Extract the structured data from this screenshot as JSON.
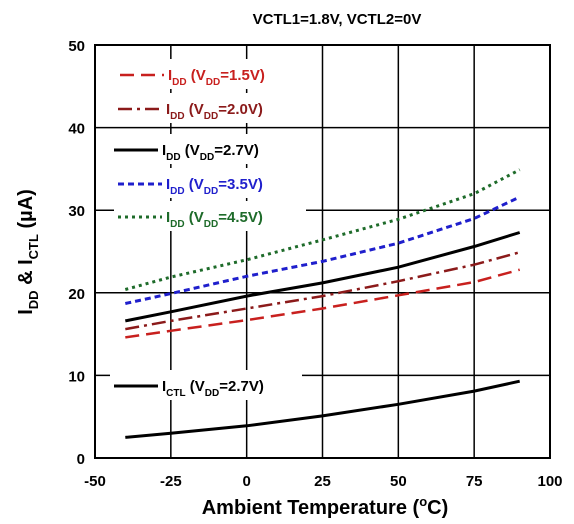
{
  "chart_data": {
    "type": "line",
    "subtitle": "VCTL1=1.8V, VCTL2=0V",
    "xlabel": "Ambient Temperature (",
    "xlabel_sup": "o",
    "xlabel_tail": "C)",
    "ylabel_parts": [
      "I",
      "DD",
      " & I",
      "CTL",
      " (µA)"
    ],
    "xlim": [
      -50,
      100
    ],
    "ylim": [
      0,
      50
    ],
    "x_ticks": [
      -50,
      -25,
      0,
      25,
      50,
      75,
      100
    ],
    "y_ticks": [
      0,
      10,
      20,
      30,
      40,
      50
    ],
    "grid": true,
    "legend_placement": "top-left",
    "series": [
      {
        "label": [
          "I",
          "DD",
          " (V",
          "DD",
          "=1.5V)"
        ],
        "color": "#c8201e",
        "dash": "14,7",
        "width": 2.5,
        "x": [
          -40,
          -25,
          0,
          25,
          50,
          75,
          90
        ],
        "y": [
          14.6,
          15.4,
          16.7,
          18.1,
          19.7,
          21.3,
          22.8
        ]
      },
      {
        "label": [
          "I",
          "DD",
          " (V",
          "DD",
          "=2.0V)"
        ],
        "color": "#8b1a1a",
        "dash": "14,5,3,5",
        "width": 2.5,
        "x": [
          -40,
          -25,
          0,
          25,
          50,
          75,
          90
        ],
        "y": [
          15.6,
          16.6,
          18.1,
          19.6,
          21.4,
          23.4,
          24.9
        ]
      },
      {
        "label": [
          "I",
          "DD",
          " (V",
          "DD",
          "=2.7V)"
        ],
        "color": "#000000",
        "dash": "",
        "width": 3,
        "x": [
          -40,
          -25,
          0,
          25,
          50,
          75,
          90
        ],
        "y": [
          16.6,
          17.7,
          19.6,
          21.2,
          23.1,
          25.6,
          27.3
        ]
      },
      {
        "label": [
          "I",
          "DD",
          " (V",
          "DD",
          "=3.5V)"
        ],
        "color": "#1f1fcc",
        "dash": "6,4",
        "width": 3,
        "x": [
          -40,
          -25,
          0,
          25,
          50,
          75,
          90
        ],
        "y": [
          18.7,
          19.9,
          22.0,
          23.8,
          26.0,
          29.0,
          31.6
        ]
      },
      {
        "label": [
          "I",
          "DD",
          " (V",
          "DD",
          "=4.5V)"
        ],
        "color": "#1e6b2a",
        "dash": "3,4",
        "width": 3,
        "x": [
          -40,
          -25,
          0,
          25,
          50,
          75,
          90
        ],
        "y": [
          20.4,
          21.9,
          24.0,
          26.4,
          28.9,
          32.0,
          34.9
        ]
      },
      {
        "label": [
          "I",
          "CTL",
          " (V",
          "DD",
          "=2.7V)"
        ],
        "color": "#000000",
        "dash": "",
        "width": 3,
        "x": [
          -40,
          -25,
          0,
          25,
          50,
          75,
          90
        ],
        "y": [
          2.5,
          3.0,
          3.9,
          5.1,
          6.5,
          8.1,
          9.3
        ]
      }
    ]
  }
}
